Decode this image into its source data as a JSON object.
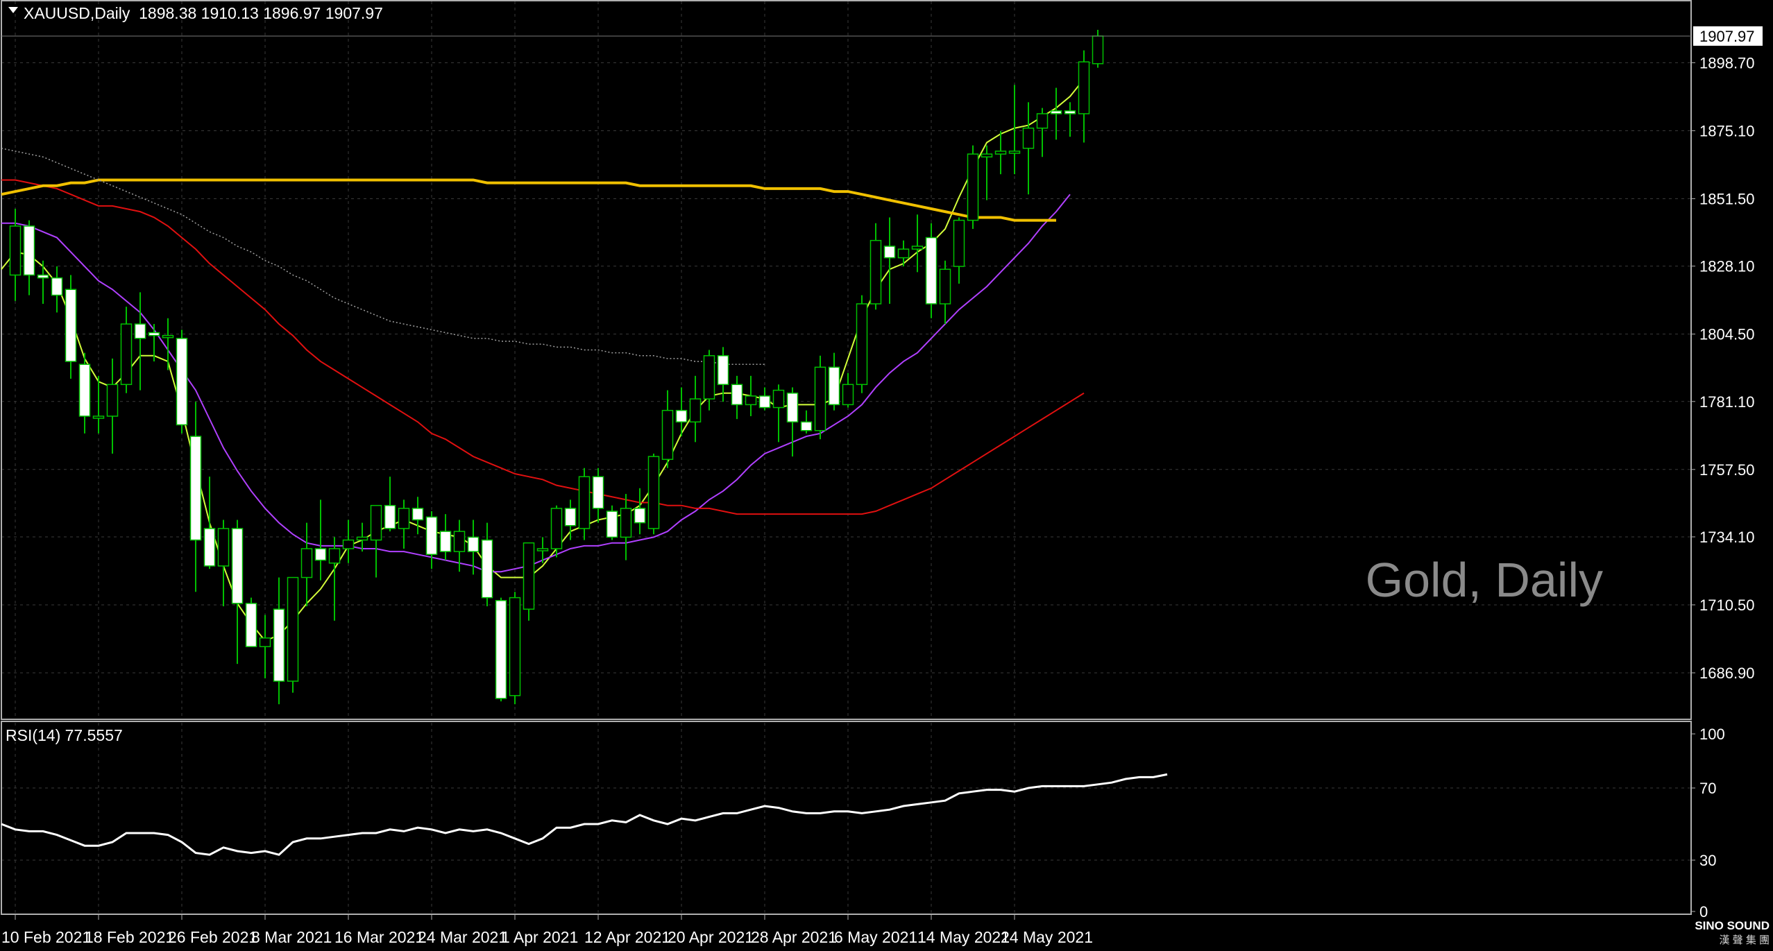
{
  "header": {
    "symbol_line": "XAUUSD,Daily  1898.38 1910.13 1896.97 1907.97",
    "current_price_tag": "1907.97"
  },
  "watermark": "Gold, Daily",
  "logo": {
    "text": "SINO SOUND",
    "subtext": "漢 聲 集 團"
  },
  "colors": {
    "background": "#000000",
    "grid": "#3a3a3a",
    "axis": "#b0b0b0",
    "text": "#ffffff",
    "candle_up_body": "#000000",
    "candle_down_body": "#ffffff",
    "wick": "#00c000",
    "ma_short": "#d4ff3a",
    "ma_mid": "#b040ff",
    "ma_long": "#e01010",
    "ma_200": "#f0c000",
    "ma_dotted": "#a0a0a0",
    "rsi_line": "#ffffff",
    "watermark": "#8a8a8a"
  },
  "chart_data": [
    {
      "type": "candlestick",
      "symbol": "XAUUSD",
      "timeframe": "Daily",
      "grid": true,
      "y_ticks": [
        "1898.70",
        "1875.10",
        "1851.50",
        "1828.10",
        "1804.50",
        "1781.10",
        "1757.50",
        "1734.10",
        "1710.50",
        "1686.90"
      ],
      "ylim": [
        1671,
        1920
      ],
      "x_tick_labels": [
        "10 Feb 2021",
        "18 Feb 2021",
        "26 Feb 2021",
        "8 Mar 2021",
        "16 Mar 2021",
        "24 Mar 2021",
        "1 Apr 2021",
        "12 Apr 2021",
        "20 Apr 2021",
        "28 Apr 2021",
        "6 May 2021",
        "14 May 2021",
        "24 May 2021"
      ],
      "x_tick_index": [
        0,
        6,
        12,
        18,
        24,
        30,
        36,
        42,
        48,
        54,
        60,
        66,
        72
      ],
      "candles": [
        {
          "o": 1825,
          "h": 1848,
          "l": 1816,
          "c": 1842
        },
        {
          "o": 1842,
          "h": 1844,
          "l": 1818,
          "c": 1825
        },
        {
          "o": 1825,
          "h": 1830,
          "l": 1815,
          "c": 1824
        },
        {
          "o": 1824,
          "h": 1828,
          "l": 1812,
          "c": 1818
        },
        {
          "o": 1820,
          "h": 1825,
          "l": 1789,
          "c": 1795
        },
        {
          "o": 1794,
          "h": 1798,
          "l": 1770,
          "c": 1776
        },
        {
          "o": 1776,
          "h": 1790,
          "l": 1770,
          "c": 1776
        },
        {
          "o": 1776,
          "h": 1796,
          "l": 1763,
          "c": 1787
        },
        {
          "o": 1787,
          "h": 1814,
          "l": 1784,
          "c": 1808
        },
        {
          "o": 1808,
          "h": 1819,
          "l": 1785,
          "c": 1803
        },
        {
          "o": 1805,
          "h": 1808,
          "l": 1795,
          "c": 1804
        },
        {
          "o": 1804,
          "h": 1810,
          "l": 1792,
          "c": 1804
        },
        {
          "o": 1803,
          "h": 1806,
          "l": 1770,
          "c": 1773
        },
        {
          "o": 1769,
          "h": 1781,
          "l": 1715,
          "c": 1733
        },
        {
          "o": 1737,
          "h": 1755,
          "l": 1723,
          "c": 1724
        },
        {
          "o": 1724,
          "h": 1740,
          "l": 1710,
          "c": 1737
        },
        {
          "o": 1737,
          "h": 1740,
          "l": 1690,
          "c": 1711
        },
        {
          "o": 1711,
          "h": 1713,
          "l": 1698,
          "c": 1696
        },
        {
          "o": 1696,
          "h": 1707,
          "l": 1685,
          "c": 1699
        },
        {
          "o": 1709,
          "h": 1720,
          "l": 1676,
          "c": 1684
        },
        {
          "o": 1684,
          "h": 1719,
          "l": 1680,
          "c": 1720
        },
        {
          "o": 1720,
          "h": 1739,
          "l": 1710,
          "c": 1730
        },
        {
          "o": 1730,
          "h": 1747,
          "l": 1719,
          "c": 1726
        },
        {
          "o": 1725,
          "h": 1734,
          "l": 1705,
          "c": 1730
        },
        {
          "o": 1730,
          "h": 1740,
          "l": 1725,
          "c": 1733
        },
        {
          "o": 1733,
          "h": 1739,
          "l": 1729,
          "c": 1734
        },
        {
          "o": 1733,
          "h": 1745,
          "l": 1720,
          "c": 1745
        },
        {
          "o": 1745,
          "h": 1755,
          "l": 1736,
          "c": 1737
        },
        {
          "o": 1737,
          "h": 1747,
          "l": 1730,
          "c": 1744
        },
        {
          "o": 1744,
          "h": 1748,
          "l": 1735,
          "c": 1740
        },
        {
          "o": 1741,
          "h": 1743,
          "l": 1723,
          "c": 1728
        },
        {
          "o": 1736,
          "h": 1742,
          "l": 1726,
          "c": 1729
        },
        {
          "o": 1729,
          "h": 1740,
          "l": 1722,
          "c": 1736
        },
        {
          "o": 1734,
          "h": 1740,
          "l": 1721,
          "c": 1729
        },
        {
          "o": 1733,
          "h": 1739,
          "l": 1710,
          "c": 1713
        },
        {
          "o": 1712,
          "h": 1713,
          "l": 1677,
          "c": 1678
        },
        {
          "o": 1679,
          "h": 1715,
          "l": 1676,
          "c": 1713
        },
        {
          "o": 1709,
          "h": 1731,
          "l": 1705,
          "c": 1732
        },
        {
          "o": 1730,
          "h": 1734,
          "l": 1725,
          "c": 1730
        },
        {
          "o": 1730,
          "h": 1745,
          "l": 1727,
          "c": 1744
        },
        {
          "o": 1744,
          "h": 1747,
          "l": 1733,
          "c": 1738
        },
        {
          "o": 1737,
          "h": 1758,
          "l": 1733,
          "c": 1755
        },
        {
          "o": 1755,
          "h": 1758,
          "l": 1739,
          "c": 1744
        },
        {
          "o": 1743,
          "h": 1745,
          "l": 1733,
          "c": 1734
        },
        {
          "o": 1734,
          "h": 1749,
          "l": 1726,
          "c": 1744
        },
        {
          "o": 1744,
          "h": 1751,
          "l": 1735,
          "c": 1739
        },
        {
          "o": 1737,
          "h": 1763,
          "l": 1735,
          "c": 1762
        },
        {
          "o": 1761,
          "h": 1785,
          "l": 1758,
          "c": 1778
        },
        {
          "o": 1778,
          "h": 1786,
          "l": 1769,
          "c": 1774
        },
        {
          "o": 1774,
          "h": 1790,
          "l": 1767,
          "c": 1782
        },
        {
          "o": 1782,
          "h": 1799,
          "l": 1778,
          "c": 1797
        },
        {
          "o": 1797,
          "h": 1800,
          "l": 1781,
          "c": 1787
        },
        {
          "o": 1787,
          "h": 1790,
          "l": 1775,
          "c": 1780
        },
        {
          "o": 1780,
          "h": 1790,
          "l": 1776,
          "c": 1783
        },
        {
          "o": 1783,
          "h": 1786,
          "l": 1778,
          "c": 1779
        },
        {
          "o": 1779,
          "h": 1787,
          "l": 1767,
          "c": 1785
        },
        {
          "o": 1784,
          "h": 1786,
          "l": 1762,
          "c": 1774
        },
        {
          "o": 1774,
          "h": 1778,
          "l": 1770,
          "c": 1771
        },
        {
          "o": 1771,
          "h": 1797,
          "l": 1768,
          "c": 1793
        },
        {
          "o": 1793,
          "h": 1798,
          "l": 1778,
          "c": 1780
        },
        {
          "o": 1780,
          "h": 1791,
          "l": 1779,
          "c": 1787
        },
        {
          "o": 1787,
          "h": 1818,
          "l": 1784,
          "c": 1815
        },
        {
          "o": 1815,
          "h": 1843,
          "l": 1813,
          "c": 1837
        },
        {
          "o": 1835,
          "h": 1845,
          "l": 1815,
          "c": 1831
        },
        {
          "o": 1831,
          "h": 1837,
          "l": 1828,
          "c": 1834
        },
        {
          "o": 1834,
          "h": 1846,
          "l": 1826,
          "c": 1835
        },
        {
          "o": 1838,
          "h": 1843,
          "l": 1810,
          "c": 1815
        },
        {
          "o": 1815,
          "h": 1830,
          "l": 1808,
          "c": 1827
        },
        {
          "o": 1828,
          "h": 1845,
          "l": 1822,
          "c": 1844
        },
        {
          "o": 1844,
          "h": 1870,
          "l": 1841,
          "c": 1867
        },
        {
          "o": 1866,
          "h": 1870,
          "l": 1851,
          "c": 1867
        },
        {
          "o": 1867,
          "h": 1875,
          "l": 1860,
          "c": 1868
        },
        {
          "o": 1868,
          "h": 1891,
          "l": 1860,
          "c": 1868
        },
        {
          "o": 1869,
          "h": 1885,
          "l": 1853,
          "c": 1876
        },
        {
          "o": 1876,
          "h": 1883,
          "l": 1866,
          "c": 1881
        },
        {
          "o": 1882,
          "h": 1890,
          "l": 1872,
          "c": 1881
        },
        {
          "o": 1882,
          "h": 1885,
          "l": 1873,
          "c": 1881
        },
        {
          "o": 1881,
          "h": 1903,
          "l": 1871,
          "c": 1899
        },
        {
          "o": 1898.38,
          "h": 1910.13,
          "l": 1896.97,
          "c": 1907.97
        }
      ],
      "moving_averages": [
        {
          "style": "ma_short",
          "start_index": -1,
          "values": [
            1827,
            1833,
            1832,
            1828,
            1822,
            1810,
            1796,
            1788,
            1786,
            1791,
            1797,
            1797,
            1795,
            1778,
            1758,
            1739,
            1724,
            1711,
            1704,
            1698,
            1700,
            1705,
            1711,
            1716,
            1723,
            1731,
            1733,
            1736,
            1738,
            1740,
            1738,
            1736,
            1735,
            1734,
            1731,
            1724,
            1720,
            1720,
            1720,
            1724,
            1730,
            1736,
            1738,
            1740,
            1741,
            1742,
            1745,
            1752,
            1760,
            1770,
            1778,
            1783,
            1784,
            1784,
            1783,
            1782,
            1779,
            1780,
            1780,
            1780,
            1782,
            1796,
            1810,
            1820,
            1827,
            1829,
            1833,
            1836,
            1841,
            1852,
            1862,
            1871,
            1874,
            1876,
            1877,
            1880,
            1883,
            1887,
            1893
          ]
        },
        {
          "style": "ma_mid",
          "start_index": -1,
          "values": [
            1843,
            1843,
            1842,
            1840,
            1838,
            1833,
            1828,
            1823,
            1820,
            1816,
            1812,
            1806,
            1799,
            1792,
            1785,
            1775,
            1765,
            1757,
            1750,
            1744,
            1739,
            1735,
            1732,
            1731,
            1731,
            1731,
            1730,
            1730,
            1729,
            1729,
            1728,
            1727,
            1726,
            1725,
            1724,
            1722,
            1722,
            1723,
            1724,
            1726,
            1728,
            1730,
            1731,
            1731,
            1732,
            1732,
            1733,
            1734,
            1736,
            1740,
            1743,
            1747,
            1750,
            1754,
            1759,
            1763,
            1765,
            1767,
            1769,
            1770,
            1773,
            1776,
            1780,
            1786,
            1791,
            1795,
            1798,
            1803,
            1808,
            1813,
            1817,
            1821,
            1826,
            1831,
            1836,
            1842,
            1847,
            1853
          ]
        },
        {
          "style": "ma_long",
          "start_index": -1,
          "values": [
            1858,
            1858,
            1857,
            1856,
            1855,
            1853,
            1851,
            1849,
            1849,
            1848,
            1847,
            1845,
            1842,
            1838,
            1834,
            1829,
            1825,
            1821,
            1817,
            1813,
            1808,
            1804,
            1799,
            1795,
            1792,
            1789,
            1786,
            1783,
            1780,
            1777,
            1774,
            1770,
            1768,
            1765,
            1762,
            1760,
            1758,
            1756,
            1755,
            1754,
            1752,
            1751,
            1750,
            1749,
            1748,
            1747,
            1746,
            1746,
            1745,
            1745,
            1744,
            1744,
            1743,
            1742,
            1742,
            1742,
            1742,
            1742,
            1742,
            1742,
            1742,
            1742,
            1742,
            1743,
            1745,
            1747,
            1749,
            1751,
            1754,
            1757,
            1760,
            1763,
            1766,
            1769,
            1772,
            1775,
            1778,
            1781,
            1784
          ]
        },
        {
          "style": "ma_200",
          "start_index": -1,
          "values": [
            1853,
            1854,
            1855,
            1856,
            1856,
            1857,
            1857,
            1858,
            1858,
            1858,
            1858,
            1858,
            1858,
            1858,
            1858,
            1858,
            1858,
            1858,
            1858,
            1858,
            1858,
            1858,
            1858,
            1858,
            1858,
            1858,
            1858,
            1858,
            1858,
            1858,
            1858,
            1858,
            1858,
            1858,
            1858,
            1857,
            1857,
            1857,
            1857,
            1857,
            1857,
            1857,
            1857,
            1857,
            1857,
            1857,
            1856,
            1856,
            1856,
            1856,
            1856,
            1856,
            1856,
            1856,
            1856,
            1855,
            1855,
            1855,
            1855,
            1855,
            1854,
            1854,
            1853,
            1852,
            1851,
            1850,
            1849,
            1848,
            1847,
            1846,
            1845,
            1845,
            1845,
            1844,
            1844,
            1844,
            1844
          ]
        },
        {
          "style": "ma_dotted",
          "start_index": -1,
          "values": [
            1869,
            1868,
            1867,
            1866,
            1864,
            1862,
            1860,
            1858,
            1856,
            1854,
            1852,
            1850,
            1848,
            1846,
            1843,
            1840,
            1838,
            1835,
            1833,
            1830,
            1828,
            1825,
            1823,
            1820,
            1817,
            1815,
            1813,
            1811,
            1809,
            1808,
            1807,
            1806,
            1805,
            1804,
            1803,
            1803,
            1802,
            1802,
            1801,
            1801,
            1800,
            1800,
            1799,
            1799,
            1798,
            1798,
            1797,
            1797,
            1796,
            1796,
            1795,
            1795,
            1794,
            1794,
            1794,
            1794
          ]
        }
      ]
    },
    {
      "type": "line",
      "title": "RSI(14) 77.5557",
      "y_ticks": [
        "100",
        "70",
        "30",
        "0"
      ],
      "ylim": [
        0,
        100
      ],
      "series": [
        {
          "values": [
            50,
            47,
            46,
            46,
            44,
            41,
            38,
            38,
            40,
            45,
            45,
            45,
            44,
            40,
            34,
            33,
            37,
            35,
            34,
            35,
            33,
            40,
            42,
            42,
            43,
            44,
            45,
            45,
            47,
            46,
            48,
            47,
            45,
            47,
            46,
            47,
            45,
            42,
            39,
            42,
            48,
            48,
            50,
            50,
            52,
            51,
            55,
            52,
            50,
            53,
            52,
            54,
            56,
            56,
            58,
            60,
            59,
            57,
            56,
            56,
            57,
            57,
            56,
            57,
            58,
            60,
            61,
            62,
            63,
            67,
            68,
            69,
            69,
            68,
            70,
            71,
            71,
            71,
            71,
            72,
            73,
            75,
            76,
            76,
            77.56
          ],
          "start_index": -1
        }
      ]
    }
  ]
}
